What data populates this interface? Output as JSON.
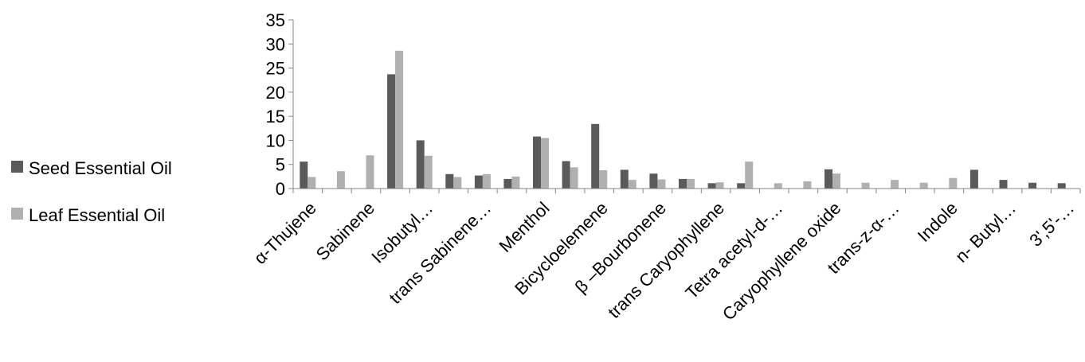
{
  "chart_data": {
    "type": "bar",
    "title": "",
    "xlabel": "",
    "ylabel": "",
    "ylim": [
      0,
      35
    ],
    "yticks": [
      0,
      5,
      10,
      15,
      20,
      25,
      30,
      35
    ],
    "grid": false,
    "legend_position": "left",
    "categories": [
      "α-Thujene",
      "",
      "Sabinene",
      "",
      "Isobutyl…",
      "",
      "trans Sabinene…",
      "",
      "Menthol",
      "",
      "Bicycloelemene",
      "",
      "β –Bourbonene",
      "",
      "trans Caryophyllene",
      "",
      "Tetra acetyl-d-…",
      "",
      "Caryophyllene oxide",
      "",
      "trans-z-α-…",
      "",
      "Indole",
      "",
      "n- Butyl…",
      "",
      "3',5'-…"
    ],
    "series": [
      {
        "name": "Seed Essential Oil",
        "color": "#5a5a5a",
        "values": [
          5.6,
          0,
          0,
          23.7,
          10.0,
          3.0,
          2.7,
          2.0,
          10.8,
          5.7,
          13.4,
          3.9,
          3.1,
          2.0,
          1.1,
          1.1,
          0,
          0,
          4.0,
          0,
          0,
          0,
          0,
          3.9,
          1.8,
          1.2,
          1.1
        ]
      },
      {
        "name": "Leaf Essential Oil",
        "color": "#b0b0b0",
        "values": [
          2.4,
          3.6,
          6.9,
          28.6,
          6.8,
          2.4,
          3.0,
          2.5,
          10.5,
          4.4,
          3.8,
          1.8,
          1.9,
          2.0,
          1.3,
          5.6,
          1.1,
          1.5,
          3.1,
          1.2,
          1.8,
          1.2,
          2.2,
          0,
          0,
          0,
          0
        ]
      }
    ]
  }
}
